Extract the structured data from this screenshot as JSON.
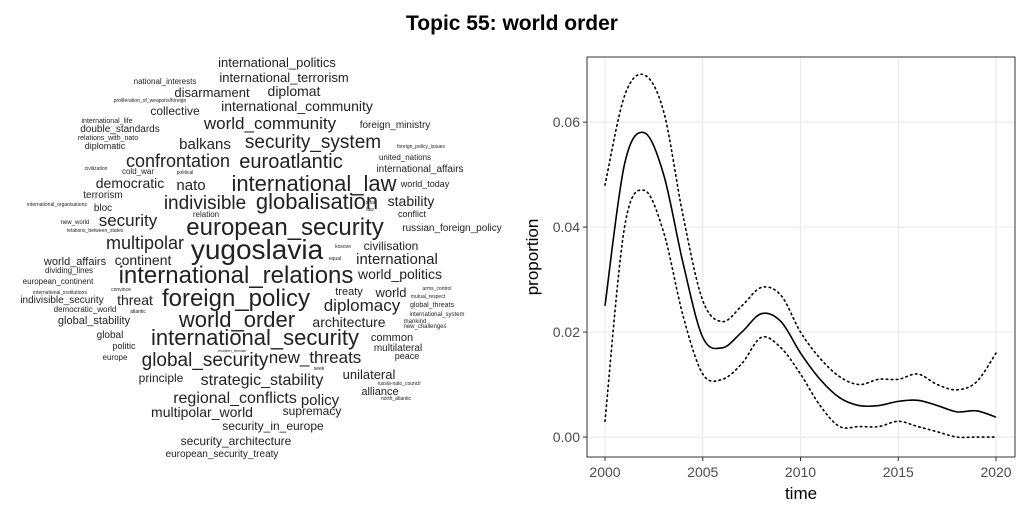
{
  "title": "Topic 55: world order",
  "chart_data": [
    {
      "type": "wordcloud",
      "color": "#222222",
      "words": [
        {
          "text": "international_politics",
          "weight": 13
        },
        {
          "text": "national_interests",
          "weight": 8
        },
        {
          "text": "international_terrorism",
          "weight": 13
        },
        {
          "text": "disarmament",
          "weight": 13
        },
        {
          "text": "diplomat",
          "weight": 14
        },
        {
          "text": "proliferation_of_weapons/foreign",
          "weight": 5
        },
        {
          "text": "international_community",
          "weight": 14
        },
        {
          "text": "collective",
          "weight": 12
        },
        {
          "text": "world_community",
          "weight": 17
        },
        {
          "text": "foreign_ministry",
          "weight": 10
        },
        {
          "text": "international_life",
          "weight": 7
        },
        {
          "text": "double_standards",
          "weight": 10
        },
        {
          "text": "relations_with_nato",
          "weight": 7
        },
        {
          "text": "security_system",
          "weight": 19
        },
        {
          "text": "diplomatic",
          "weight": 9
        },
        {
          "text": "balkans",
          "weight": 15
        },
        {
          "text": "foreign_policy_issues",
          "weight": 5
        },
        {
          "text": "confrontation",
          "weight": 18
        },
        {
          "text": "euroatlantic",
          "weight": 20
        },
        {
          "text": "united_nations",
          "weight": 8
        },
        {
          "text": "civilization",
          "weight": 5
        },
        {
          "text": "cold_war",
          "weight": 8
        },
        {
          "text": "political",
          "weight": 5
        },
        {
          "text": "international_affairs",
          "weight": 10
        },
        {
          "text": "democratic",
          "weight": 14
        },
        {
          "text": "nato",
          "weight": 15
        },
        {
          "text": "international_law",
          "weight": 22
        },
        {
          "text": "world_today",
          "weight": 9
        },
        {
          "text": "terrorism",
          "weight": 10
        },
        {
          "text": "affair",
          "weight": 5
        },
        {
          "text": "stability",
          "weight": 14
        },
        {
          "text": "international_organisations",
          "weight": 5
        },
        {
          "text": "bloc",
          "weight": 10
        },
        {
          "text": "indivisible",
          "weight": 19
        },
        {
          "text": "globalisation",
          "weight": 22
        },
        {
          "text": "law",
          "weight": 5
        },
        {
          "text": "relation",
          "weight": 8
        },
        {
          "text": "conflict",
          "weight": 9
        },
        {
          "text": "new_world",
          "weight": 6
        },
        {
          "text": "security",
          "weight": 17
        },
        {
          "text": "european_security",
          "weight": 24
        },
        {
          "text": "russian_foreign_policy",
          "weight": 10
        },
        {
          "text": "relations_between_states",
          "weight": 5
        },
        {
          "text": "multipolar",
          "weight": 18
        },
        {
          "text": "kosovo",
          "weight": 5
        },
        {
          "text": "civilisation",
          "weight": 12
        },
        {
          "text": "yugoslavia",
          "weight": 28
        },
        {
          "text": "equal",
          "weight": 5
        },
        {
          "text": "international",
          "weight": 15
        },
        {
          "text": "world_affairs",
          "weight": 11
        },
        {
          "text": "continent",
          "weight": 14
        },
        {
          "text": "dividing_lines",
          "weight": 8
        },
        {
          "text": "international_relations",
          "weight": 24
        },
        {
          "text": "world_politics",
          "weight": 14
        },
        {
          "text": "european_continent",
          "weight": 8
        },
        {
          "text": "convince",
          "weight": 5
        },
        {
          "text": "treaty",
          "weight": 11
        },
        {
          "text": "world",
          "weight": 13
        },
        {
          "text": "arms_control",
          "weight": 5
        },
        {
          "text": "international_institutions",
          "weight": 5
        },
        {
          "text": "foreign_policy",
          "weight": 24
        },
        {
          "text": "indivisible_security",
          "weight": 10
        },
        {
          "text": "threat",
          "weight": 14
        },
        {
          "text": "mutual_respect",
          "weight": 5
        },
        {
          "text": "global_threats",
          "weight": 7
        },
        {
          "text": "diplomacy",
          "weight": 17
        },
        {
          "text": "democratic_world",
          "weight": 8
        },
        {
          "text": "atlantic",
          "weight": 5
        },
        {
          "text": "international_system",
          "weight": 6
        },
        {
          "text": "global_stability",
          "weight": 11
        },
        {
          "text": "world_order",
          "weight": 22
        },
        {
          "text": "architecture",
          "weight": 14
        },
        {
          "text": "mankind",
          "weight": 6
        },
        {
          "text": "new_challenges",
          "weight": 6
        },
        {
          "text": "global",
          "weight": 10
        },
        {
          "text": "international_security",
          "weight": 22
        },
        {
          "text": "common",
          "weight": 11
        },
        {
          "text": "politic",
          "weight": 9
        },
        {
          "text": "multilateral",
          "weight": 10
        },
        {
          "text": "modern_threats",
          "weight": 4
        },
        {
          "text": "peace",
          "weight": 9
        },
        {
          "text": "europe",
          "weight": 8
        },
        {
          "text": "global_security",
          "weight": 19
        },
        {
          "text": "new_threats",
          "weight": 17
        },
        {
          "text": "seek",
          "weight": 5
        },
        {
          "text": "principle",
          "weight": 12
        },
        {
          "text": "strategic_stability",
          "weight": 16
        },
        {
          "text": "unilateral",
          "weight": 13
        },
        {
          "text": "russia-nato_council",
          "weight": 5
        },
        {
          "text": "alliance",
          "weight": 11
        },
        {
          "text": "north_atlantic",
          "weight": 5
        },
        {
          "text": "regional_conflicts",
          "weight": 16
        },
        {
          "text": "policy",
          "weight": 15
        },
        {
          "text": "multipolar_world",
          "weight": 14
        },
        {
          "text": "supremacy",
          "weight": 12
        },
        {
          "text": "security_in_europe",
          "weight": 12
        },
        {
          "text": "security_architecture",
          "weight": 12
        },
        {
          "text": "european_security_treaty",
          "weight": 10
        }
      ]
    },
    {
      "type": "line",
      "x_label": "time",
      "y_label": "proportion",
      "grid": true,
      "x": [
        2000,
        2001,
        2002,
        2003,
        2004,
        2005,
        2006,
        2007,
        2008,
        2009,
        2010,
        2011,
        2012,
        2013,
        2014,
        2015,
        2016,
        2017,
        2018,
        2019,
        2020
      ],
      "series": [
        {
          "color": "#000000",
          "style": "solid",
          "values": [
            0.025,
            0.052,
            0.058,
            0.05,
            0.033,
            0.019,
            0.017,
            0.02,
            0.0235,
            0.022,
            0.016,
            0.011,
            0.0075,
            0.006,
            0.006,
            0.0068,
            0.007,
            0.006,
            0.0048,
            0.005,
            0.0038
          ]
        },
        {
          "color": "#000000",
          "style": "dotted",
          "values": [
            0.048,
            0.065,
            0.069,
            0.062,
            0.042,
            0.026,
            0.022,
            0.025,
            0.0285,
            0.027,
            0.02,
            0.015,
            0.0115,
            0.01,
            0.011,
            0.011,
            0.012,
            0.01,
            0.009,
            0.0105,
            0.016
          ]
        },
        {
          "color": "#000000",
          "style": "dotted",
          "values": [
            0.003,
            0.04,
            0.047,
            0.039,
            0.023,
            0.012,
            0.011,
            0.014,
            0.019,
            0.017,
            0.012,
            0.006,
            0.002,
            0.002,
            0.002,
            0.003,
            0.002,
            0.001,
            0,
            0,
            0
          ]
        }
      ],
      "xlim": [
        1999.08,
        2020.97
      ],
      "xticks": [
        2000,
        2005,
        2010,
        2015,
        2020
      ],
      "ylim": [
        -0.0038,
        0.0724
      ],
      "yticks": [
        {
          "value": 0,
          "label": "0.00"
        },
        0.02,
        0.04,
        0.06
      ]
    }
  ]
}
